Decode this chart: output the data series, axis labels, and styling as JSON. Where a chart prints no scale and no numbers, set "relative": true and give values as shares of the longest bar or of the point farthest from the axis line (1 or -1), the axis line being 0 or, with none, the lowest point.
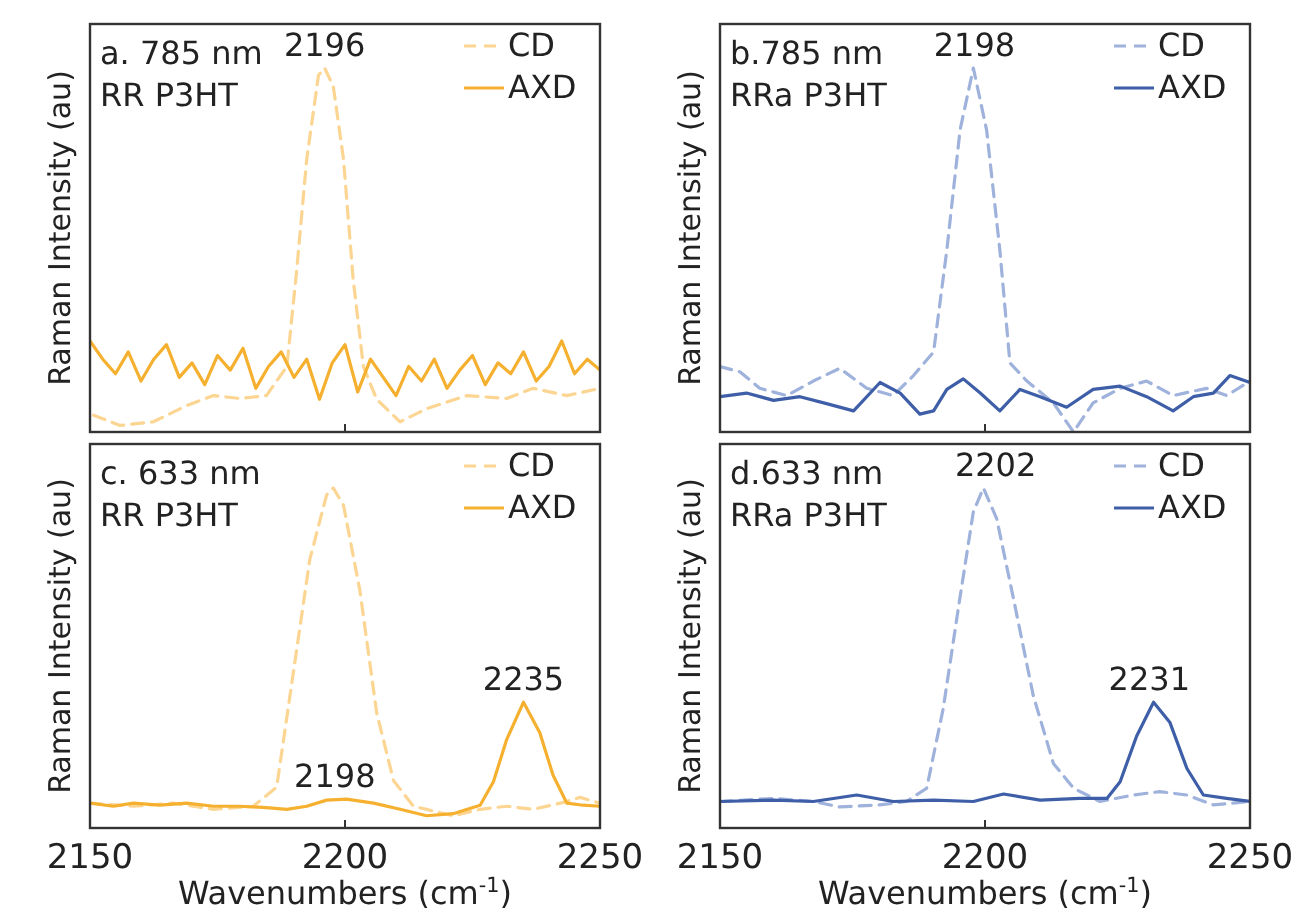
{
  "chart_data": [
    {
      "type": "line",
      "relative": true,
      "xlim": [
        2150,
        2250
      ],
      "xticks": [
        2150,
        2200,
        2250
      ],
      "tick_labels": false,
      "ylabel": "Raman Intensity (au)",
      "legend": "top right",
      "grid": false,
      "annotations": [
        "a. 785 nm",
        "RR P3HT",
        {
          "text": "2196",
          "x": 2196,
          "y": 1.0
        }
      ],
      "series": [
        {
          "name": "CD",
          "color": "#fbd591",
          "line_style": "dashed",
          "x": [
            2150.7,
            2155.9,
            2162.4,
            2169.0,
            2174.2,
            2179.4,
            2184.6,
            2188.6,
            2190.5,
            2192.5,
            2194.8,
            2196,
            2197.7,
            2199.7,
            2201.6,
            2203.6,
            2206.2,
            2210.8,
            2216.0,
            2223.9,
            2231.7,
            2236.9,
            2243.5,
            2250
          ],
          "values": [
            0.046,
            0.018,
            0.028,
            0.073,
            0.1,
            0.092,
            0.1,
            0.18,
            0.44,
            0.75,
            0.98,
            1.0,
            0.95,
            0.75,
            0.42,
            0.18,
            0.09,
            0.028,
            0.064,
            0.1,
            0.092,
            0.12,
            0.1,
            0.12
          ]
        },
        {
          "name": "AXD",
          "color": "#f6b030",
          "line_style": "solid",
          "x": [
            2150,
            2152.5,
            2155,
            2157.5,
            2160,
            2162.5,
            2165,
            2167.5,
            2170,
            2172.5,
            2175,
            2177.5,
            2180,
            2182.5,
            2185,
            2187.5,
            2190,
            2192.5,
            2195,
            2197.5,
            2200,
            2202.5,
            2205,
            2207.5,
            2210,
            2212.5,
            2215,
            2217.5,
            2220,
            2222.5,
            2225,
            2227.5,
            2230,
            2232.5,
            2235,
            2237.5,
            2240,
            2242.5,
            2245,
            2247.5,
            2250
          ],
          "values": [
            0.25,
            0.2,
            0.16,
            0.22,
            0.14,
            0.2,
            0.24,
            0.15,
            0.19,
            0.13,
            0.21,
            0.17,
            0.23,
            0.12,
            0.18,
            0.22,
            0.15,
            0.2,
            0.09,
            0.19,
            0.24,
            0.11,
            0.2,
            0.15,
            0.1,
            0.18,
            0.14,
            0.2,
            0.12,
            0.17,
            0.21,
            0.13,
            0.19,
            0.16,
            0.22,
            0.14,
            0.18,
            0.25,
            0.16,
            0.2,
            0.17
          ]
        }
      ]
    },
    {
      "type": "line",
      "relative": true,
      "xlim": [
        2150,
        2250
      ],
      "xticks": [
        2150,
        2200,
        2250
      ],
      "tick_labels": false,
      "ylabel": "Raman Intensity (au)",
      "legend": "top right",
      "grid": false,
      "annotations": [
        "b.785 nm",
        "RRa P3HT",
        {
          "text": "2198",
          "x": 2198,
          "y": 1.0
        }
      ],
      "series": [
        {
          "name": "CD",
          "color": "#9fb2dc",
          "line_style": "dashed",
          "x": [
            2150,
            2153.8,
            2157.5,
            2162.6,
            2167.6,
            2172.6,
            2177.7,
            2182.7,
            2186.5,
            2190.3,
            2192.8,
            2195.3,
            2197.8,
            2200.3,
            2202.8,
            2204.7,
            2207.9,
            2212.9,
            2216.7,
            2220.4,
            2225.5,
            2230.5,
            2235.5,
            2241.8,
            2245.6,
            2250
          ],
          "values": [
            0.18,
            0.165,
            0.12,
            0.1,
            0.14,
            0.175,
            0.12,
            0.1,
            0.155,
            0.22,
            0.5,
            0.83,
            1.0,
            0.83,
            0.5,
            0.19,
            0.14,
            0.08,
            0,
            0.08,
            0.12,
            0.14,
            0.1,
            0.12,
            0.1,
            0.14
          ]
        },
        {
          "name": "AXD",
          "color": "#3e5ea8",
          "line_style": "solid",
          "x": [
            2150,
            2155,
            2160.1,
            2165.1,
            2170.1,
            2175.2,
            2180.2,
            2184,
            2187.7,
            2190.3,
            2192.8,
            2195.9,
            2199.1,
            2202.8,
            2206.6,
            2210.4,
            2215.4,
            2220.4,
            2225.5,
            2230.5,
            2235.5,
            2239.3,
            2243.1,
            2246.2,
            2250
          ],
          "values": [
            0.097,
            0.107,
            0.087,
            0.097,
            0.078,
            0.058,
            0.136,
            0.107,
            0.049,
            0.058,
            0.117,
            0.146,
            0.107,
            0.058,
            0.117,
            0.097,
            0.068,
            0.117,
            0.126,
            0.097,
            0.058,
            0.097,
            0.107,
            0.155,
            0.136
          ]
        }
      ]
    },
    {
      "type": "line",
      "relative": true,
      "xlim": [
        2150,
        2250
      ],
      "xticks": [
        2150,
        2200,
        2250
      ],
      "tick_labels": "x",
      "xlabel": "Wavenumbers (cm$^{-1}$)",
      "ylabel": "Raman Intensity (au)",
      "legend": "top right",
      "grid": false,
      "annotations": [
        "c. 633 nm",
        "RR P3HT",
        {
          "text": "2198",
          "x": 2198,
          "y": 0.085
        },
        {
          "text": "2235",
          "x": 2235,
          "y": 0.37
        }
      ],
      "series": [
        {
          "name": "CD",
          "color": "#fbd591",
          "line_style": "dashed",
          "x": [
            2150,
            2158.5,
            2166.3,
            2174.2,
            2182.0,
            2186.6,
            2189.9,
            2193.1,
            2196.4,
            2197.7,
            2199.7,
            2202.9,
            2206.2,
            2209.5,
            2213.4,
            2221.2,
            2226.5,
            2231.7,
            2236.9,
            2242.2,
            2246.1,
            2250
          ],
          "values": [
            0.073,
            0.064,
            0.073,
            0.055,
            0.064,
            0.12,
            0.46,
            0.79,
            0.98,
            1.0,
            0.95,
            0.7,
            0.34,
            0.14,
            0.064,
            0.036,
            0.055,
            0.064,
            0.055,
            0.073,
            0.09,
            0.073
          ]
        },
        {
          "name": "AXD",
          "color": "#f6b030",
          "line_style": "solid",
          "x": [
            2150,
            2154.6,
            2158.5,
            2163.7,
            2169.0,
            2174.2,
            2179.4,
            2184.6,
            2188.6,
            2192.5,
            2196.4,
            2200.3,
            2205.6,
            2210.8,
            2216.0,
            2221.2,
            2226.5,
            2229.1,
            2231.7,
            2235.0,
            2238.2,
            2240.8,
            2243.5,
            2246.7,
            2250
          ],
          "values": [
            0.073,
            0.064,
            0.073,
            0.067,
            0.073,
            0.064,
            0.064,
            0.06,
            0.055,
            0.064,
            0.082,
            0.085,
            0.073,
            0.055,
            0.036,
            0.042,
            0.067,
            0.136,
            0.26,
            0.37,
            0.28,
            0.155,
            0.073,
            0.067,
            0.064
          ]
        }
      ]
    },
    {
      "type": "line",
      "relative": true,
      "xlim": [
        2150,
        2250
      ],
      "xticks": [
        2150,
        2200,
        2250
      ],
      "tick_labels": "x",
      "xlabel": "Wavenumbers (cm$^{-1}$)",
      "ylabel": "Raman Intensity (au)",
      "legend": "top right",
      "grid": false,
      "annotations": [
        "d.633 nm",
        "RRa P3HT",
        {
          "text": "2202",
          "x": 2202,
          "y": 1.0
        },
        {
          "text": "2231",
          "x": 2231,
          "y": 0.37
        }
      ],
      "series": [
        {
          "name": "CD",
          "color": "#9fb2dc",
          "line_style": "dashed",
          "x": [
            2150,
            2160.1,
            2167.6,
            2172.6,
            2180.2,
            2185.2,
            2189.0,
            2192.1,
            2195.3,
            2197.8,
            2199.7,
            2202.2,
            2205.3,
            2209.1,
            2212.9,
            2216.7,
            2221.7,
            2228.0,
            2233.0,
            2238.1,
            2243.1,
            2250
          ],
          "values": [
            0.078,
            0.087,
            0.078,
            0.062,
            0.068,
            0.078,
            0.117,
            0.35,
            0.68,
            0.93,
            1.0,
            0.91,
            0.68,
            0.39,
            0.19,
            0.117,
            0.078,
            0.097,
            0.107,
            0.097,
            0.068,
            0.078
          ]
        },
        {
          "name": "AXD",
          "color": "#3e5ea8",
          "line_style": "solid",
          "x": [
            2150,
            2160.1,
            2167.6,
            2175.8,
            2182.7,
            2190.3,
            2197.8,
            2203.5,
            2210.4,
            2217.9,
            2223.0,
            2225.5,
            2228.6,
            2231.8,
            2234.9,
            2238.1,
            2241.2,
            2245.6,
            2250
          ],
          "values": [
            0.078,
            0.082,
            0.078,
            0.097,
            0.078,
            0.082,
            0.078,
            0.1,
            0.082,
            0.087,
            0.087,
            0.136,
            0.27,
            0.37,
            0.31,
            0.175,
            0.097,
            0.087,
            0.078
          ]
        }
      ]
    }
  ]
}
